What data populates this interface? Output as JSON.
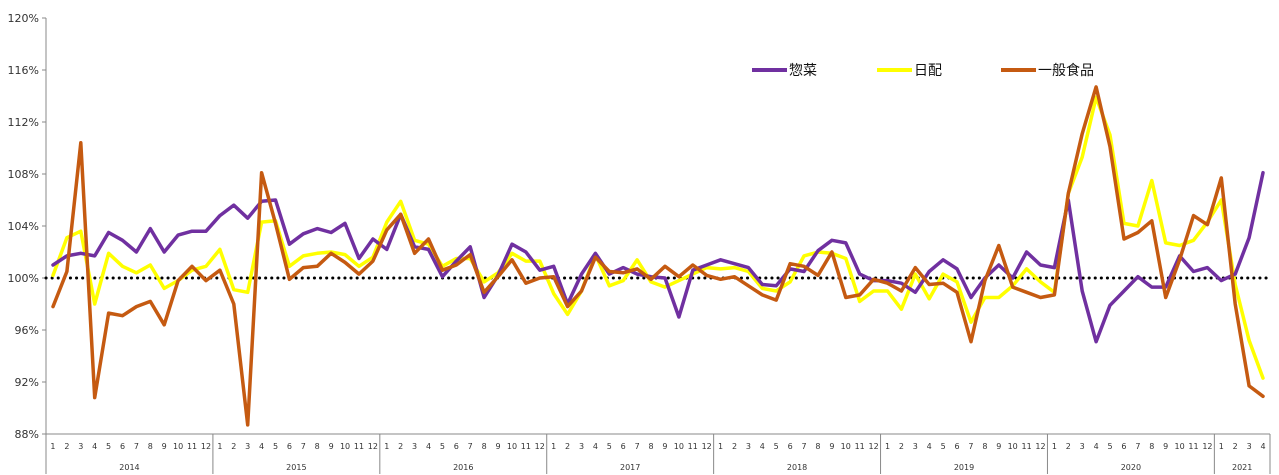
{
  "chart_data": {
    "type": "line",
    "title": "",
    "xlabel": "",
    "ylabel": "",
    "ylim": [
      88,
      120
    ],
    "y_ticks": [
      "88%",
      "92%",
      "96%",
      "100%",
      "104%",
      "108%",
      "112%",
      "116%",
      "120%"
    ],
    "reference_line": 100,
    "x_month_labels": [
      "1",
      "2",
      "3",
      "4",
      "5",
      "6",
      "7",
      "8",
      "9",
      "10",
      "11",
      "12"
    ],
    "years": [
      {
        "label": "2014",
        "months": 12
      },
      {
        "label": "2015",
        "months": 12
      },
      {
        "label": "2016",
        "months": 12
      },
      {
        "label": "2017",
        "months": 12
      },
      {
        "label": "2018",
        "months": 12
      },
      {
        "label": "2019",
        "months": 12
      },
      {
        "label": "2020",
        "months": 12
      },
      {
        "label": "2021",
        "months": 4
      }
    ],
    "legend_position": "top-right",
    "series": [
      {
        "name": "惣菜",
        "color": "#7030A0",
        "values": [
          101.0,
          101.7,
          101.9,
          101.7,
          103.5,
          102.9,
          102.0,
          103.8,
          102.0,
          103.3,
          103.6,
          103.6,
          104.8,
          105.6,
          104.6,
          105.9,
          106.0,
          102.6,
          103.4,
          103.8,
          103.5,
          104.2,
          101.5,
          103.0,
          102.2,
          104.9,
          102.4,
          102.2,
          100.1,
          101.3,
          102.4,
          98.5,
          100.2,
          102.6,
          102.0,
          100.6,
          100.9,
          98.0,
          100.3,
          101.9,
          100.3,
          100.8,
          100.3,
          100.1,
          100.0,
          97.0,
          100.6,
          101.0,
          101.4,
          101.1,
          100.8,
          99.5,
          99.4,
          100.7,
          100.5,
          102.1,
          102.9,
          102.7,
          100.3,
          99.8,
          99.8,
          99.6,
          98.9,
          100.5,
          101.4,
          100.7,
          98.5,
          100.0,
          101.0,
          100.0,
          102.0,
          101.0,
          100.8,
          106.0,
          99.0,
          95.1,
          97.9,
          99.0,
          100.1,
          99.3,
          99.3,
          101.7,
          100.5,
          100.8,
          99.8,
          100.3,
          103.1,
          108.1
        ]
      },
      {
        "name": "日配",
        "color": "#FFFF00",
        "values": [
          100.2,
          103.1,
          103.6,
          98.0,
          101.9,
          100.9,
          100.4,
          101.0,
          99.2,
          99.8,
          100.6,
          100.9,
          102.2,
          99.1,
          98.9,
          104.3,
          104.4,
          100.9,
          101.7,
          101.9,
          102.0,
          101.8,
          100.9,
          101.6,
          104.3,
          105.9,
          102.9,
          102.6,
          100.9,
          101.5,
          101.5,
          99.7,
          100.4,
          101.9,
          101.3,
          101.3,
          98.8,
          97.2,
          99.0,
          101.8,
          99.4,
          99.8,
          101.4,
          99.7,
          99.3,
          99.8,
          100.3,
          100.8,
          100.7,
          100.8,
          100.5,
          99.2,
          99.0,
          99.7,
          101.7,
          102.0,
          101.9,
          101.5,
          98.2,
          99.0,
          99.0,
          97.6,
          100.3,
          98.4,
          100.3,
          99.7,
          96.6,
          98.5,
          98.5,
          99.4,
          100.7,
          99.7,
          98.9,
          106.5,
          109.3,
          113.9,
          111.0,
          104.2,
          104.0,
          107.5,
          102.7,
          102.5,
          102.9,
          104.3,
          106.0,
          99.5,
          95.2,
          92.3
        ]
      },
      {
        "name": "一般食品",
        "color": "#C55A11",
        "values": [
          97.8,
          100.5,
          110.4,
          90.8,
          97.3,
          97.1,
          97.8,
          98.2,
          96.4,
          99.8,
          100.9,
          99.8,
          100.6,
          98.0,
          88.7,
          108.1,
          104.2,
          99.9,
          100.8,
          100.9,
          101.9,
          101.2,
          100.3,
          101.3,
          103.7,
          104.9,
          101.9,
          103.0,
          100.6,
          101.0,
          101.8,
          98.9,
          100.1,
          101.4,
          99.6,
          100.0,
          100.1,
          97.8,
          99.0,
          101.6,
          100.5,
          100.4,
          100.7,
          99.9,
          100.9,
          100.1,
          101.0,
          100.2,
          99.9,
          100.1,
          99.4,
          98.7,
          98.3,
          101.1,
          100.9,
          100.2,
          102.0,
          98.5,
          98.7,
          99.9,
          99.6,
          99.0,
          100.8,
          99.5,
          99.6,
          98.9,
          95.1,
          99.8,
          102.5,
          99.3,
          98.9,
          98.5,
          98.7,
          106.5,
          111.1,
          114.7,
          110.1,
          103.0,
          103.5,
          104.4,
          98.5,
          101.4,
          104.8,
          104.1,
          107.7,
          98.0,
          91.7,
          90.9
        ]
      }
    ]
  }
}
